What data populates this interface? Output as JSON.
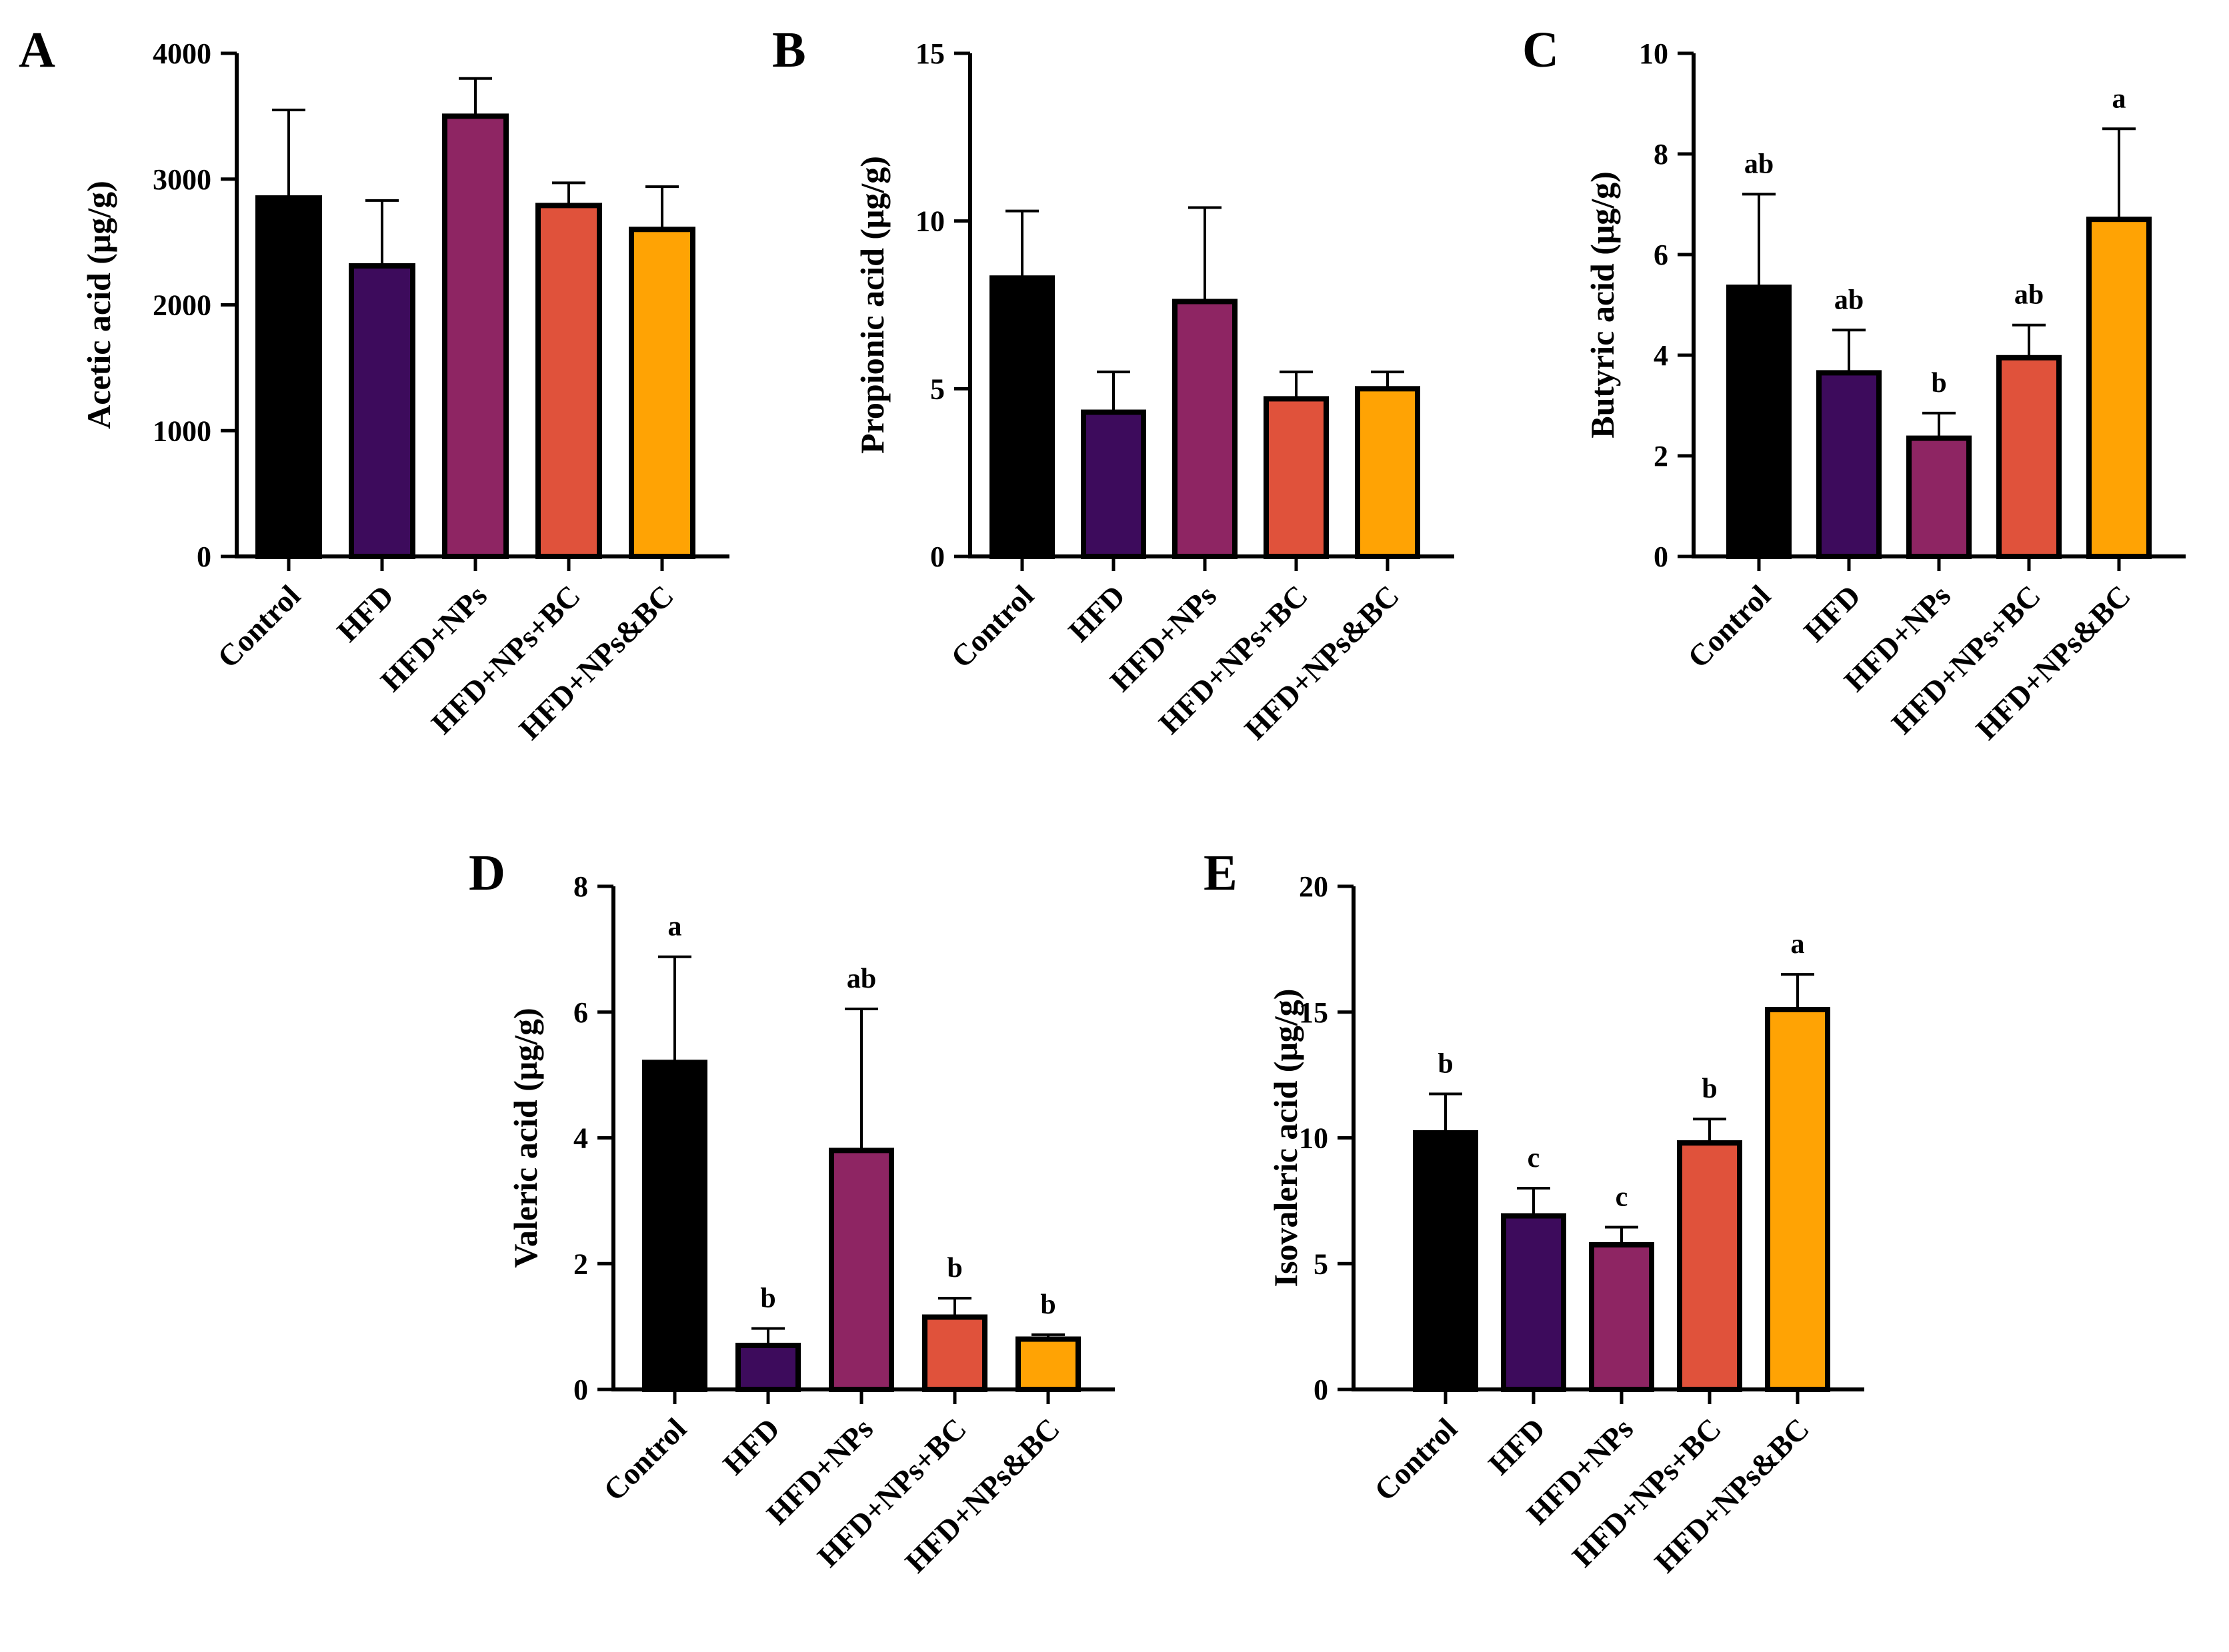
{
  "colors": [
    "#000000",
    "#3d0b5c",
    "#8e2563",
    "#e0523b",
    "#ffa304"
  ],
  "categories": [
    "Control",
    "HFD",
    "HFD+NPs",
    "HFD+NPs+BC",
    "HFD+NPs&BC"
  ],
  "chart_data": [
    {
      "type": "bar",
      "panel": "A",
      "title": "",
      "xlabel": "",
      "ylabel": "Acetic acid (μg/g)",
      "ylim": [
        0,
        4000
      ],
      "yticks": [
        0,
        1000,
        2000,
        3000,
        4000
      ],
      "categories": [
        "Control",
        "HFD",
        "HFD+NPs",
        "HFD+NPs+BC",
        "HFD+NPs&BC"
      ],
      "values": [
        2850,
        2310,
        3500,
        2790,
        2600
      ],
      "errors": [
        700,
        520,
        300,
        180,
        340
      ],
      "labels": []
    },
    {
      "type": "bar",
      "panel": "B",
      "title": "",
      "xlabel": "",
      "ylabel": "Propionic acid (μg/g)",
      "ylim": [
        0,
        15
      ],
      "yticks": [
        0,
        5,
        10,
        15
      ],
      "categories": [
        "Control",
        "HFD",
        "HFD+NPs",
        "HFD+NPs+BC",
        "HFD+NPs&BC"
      ],
      "values": [
        8.3,
        4.3,
        7.6,
        4.7,
        5.0
      ],
      "errors": [
        2.0,
        1.2,
        2.8,
        0.8,
        0.5
      ],
      "labels": []
    },
    {
      "type": "bar",
      "panel": "C",
      "title": "",
      "xlabel": "",
      "ylabel": "Butyric acid (μg/g)",
      "ylim": [
        0,
        10
      ],
      "yticks": [
        0,
        2,
        4,
        6,
        8,
        10
      ],
      "categories": [
        "Control",
        "HFD",
        "HFD+NPs",
        "HFD+NPs+BC",
        "HFD+NPs&BC"
      ],
      "values": [
        5.35,
        3.65,
        2.35,
        3.95,
        6.7
      ],
      "errors": [
        1.85,
        0.85,
        0.5,
        0.65,
        1.8
      ],
      "labels": [
        "ab",
        "ab",
        "b",
        "ab",
        "a"
      ]
    },
    {
      "type": "bar",
      "panel": "D",
      "title": "",
      "xlabel": "",
      "ylabel": "Valeric acid (μg/g)",
      "ylim": [
        0,
        8
      ],
      "yticks": [
        0,
        2,
        4,
        6,
        8
      ],
      "categories": [
        "Control",
        "HFD",
        "HFD+NPs",
        "HFD+NPs+BC",
        "HFD+NPs&BC"
      ],
      "values": [
        5.2,
        0.7,
        3.8,
        1.15,
        0.8
      ],
      "errors": [
        1.68,
        0.27,
        2.25,
        0.3,
        0.07
      ],
      "labels": [
        "a",
        "b",
        "ab",
        "b",
        "b"
      ]
    },
    {
      "type": "bar",
      "panel": "E",
      "title": "",
      "xlabel": "",
      "ylabel": "Isovaleric acid (μg/g)",
      "ylim": [
        0,
        20
      ],
      "yticks": [
        0,
        5,
        10,
        15,
        20
      ],
      "categories": [
        "Control",
        "HFD",
        "HFD+NPs",
        "HFD+NPs+BC",
        "HFD+NPs&BC"
      ],
      "values": [
        10.2,
        6.9,
        5.75,
        9.8,
        15.1
      ],
      "errors": [
        1.55,
        1.1,
        0.7,
        0.95,
        1.4
      ],
      "labels": [
        "b",
        "c",
        "c",
        "b",
        "a"
      ]
    }
  ]
}
